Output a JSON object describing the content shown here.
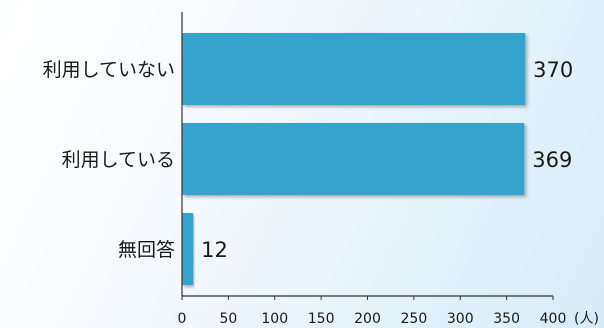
{
  "chart_data": {
    "type": "bar",
    "orientation": "horizontal",
    "categories": [
      "利用していない",
      "利用している",
      "無回答"
    ],
    "values": [
      370,
      369,
      12
    ],
    "value_labels": [
      "370",
      "369",
      "12"
    ],
    "xlim": [
      0,
      400
    ],
    "x_ticks": [
      0,
      50,
      100,
      150,
      200,
      250,
      300,
      350,
      400
    ],
    "x_tick_labels": [
      "0",
      "50",
      "100",
      "150",
      "200",
      "250",
      "300",
      "350",
      "400"
    ],
    "unit_label": "(人)",
    "grid": false,
    "legend": "none",
    "colors": {
      "bar": "#34a3cb",
      "axis": "#333333",
      "text": "#1a1a1a"
    }
  }
}
